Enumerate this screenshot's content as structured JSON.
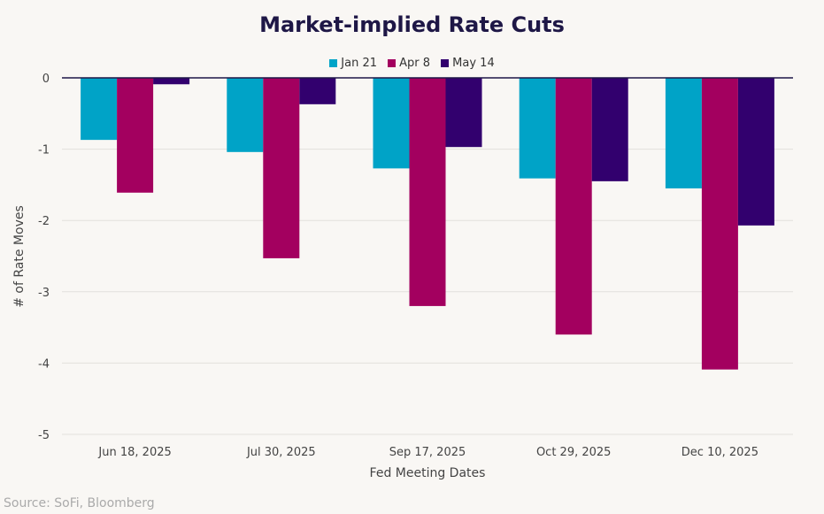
{
  "chart_data": {
    "type": "bar",
    "title": "Market-implied Rate Cuts",
    "xlabel": "Fed Meeting Dates",
    "ylabel": "# of Rate Moves",
    "ylim": [
      -5,
      0
    ],
    "yticks": [
      0,
      -1,
      -2,
      -3,
      -4,
      -5
    ],
    "grid": true,
    "legend": "top",
    "categories": [
      "Jun 18, 2025",
      "Jul 30, 2025",
      "Sep 17, 2025",
      "Oct 29, 2025",
      "Dec 10, 2025"
    ],
    "series": [
      {
        "name": "Jan 21",
        "color": "#00a3c7",
        "values": [
          -0.87,
          -1.04,
          -1.27,
          -1.41,
          -1.55
        ]
      },
      {
        "name": "Apr 8",
        "color": "#a3005f",
        "values": [
          -1.61,
          -2.53,
          -3.2,
          -3.6,
          -4.09
        ]
      },
      {
        "name": "May 14",
        "color": "#32006e",
        "values": [
          -0.09,
          -0.37,
          -0.97,
          -1.45,
          -2.07
        ]
      }
    ]
  },
  "source": "Source: SoFi, Bloomberg"
}
